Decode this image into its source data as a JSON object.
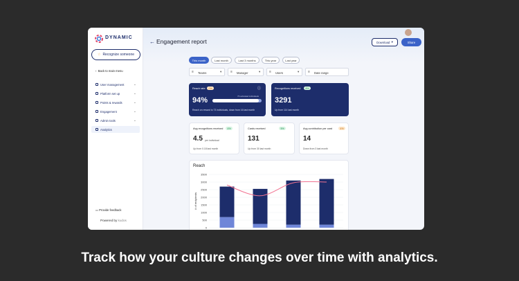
{
  "sidebar": {
    "logo": "DYNAMIC",
    "cta": "Recognize someone",
    "back": "Back to main menu",
    "menu": [
      "User management",
      "Platform set up",
      "Points & rewards",
      "Engagement",
      "Admin tools",
      "Analytics"
    ],
    "feedback": "Provide feedback",
    "powered_by": "Powered by",
    "brand": "kudos"
  },
  "header": {
    "title": "Engagement report",
    "download": "Download",
    "share": "Share"
  },
  "tabs": [
    "This month",
    "Last month",
    "Last 3 months",
    "This year",
    "Last year"
  ],
  "filters": [
    "Teams",
    "Manager",
    "Users",
    "Date range"
  ],
  "cards": [
    {
      "label": "Reach rate",
      "badge": "0%",
      "value": "94%",
      "extra": "73 activated individuals",
      "note": "Reach on reward to 73 individuals, down from 16 last month"
    },
    {
      "label": "Recognitions received",
      "badge": "8%",
      "value": "3291",
      "note": "Up from 114 last month"
    },
    {
      "label": "Avg recognitions received",
      "badge": "4%",
      "value": "4.5",
      "extra": "per individual",
      "note": "Up from 0.18 last month"
    },
    {
      "label": "Cards received",
      "badge": "5%",
      "value": "131",
      "note": "Up from 30 last month"
    },
    {
      "label": "Avg contribution per card",
      "badge": "4%",
      "value": "14",
      "note": "Down from 3 last month"
    }
  ],
  "chart_data": {
    "type": "bar",
    "stacked": true,
    "title": "Reach",
    "y_label": "# of recipients",
    "categories": [
      null,
      null,
      null,
      null
    ],
    "series": [
      {
        "color": "#6f86d8",
        "values": [
          700,
          250,
          200,
          200
        ]
      },
      {
        "color": "#1d2d6b",
        "values": [
          2000,
          2300,
          2900,
          3000
        ]
      },
      {
        "type": "line",
        "color": "#f27391",
        "values": [
          2800,
          2100,
          2950,
          3000
        ]
      }
    ],
    "ylim": [
      0,
      3500
    ],
    "yticks": [
      0,
      500,
      1000,
      1500,
      2000,
      2500,
      3000,
      3500
    ],
    "grid": true
  },
  "caption": "Track how your culture changes over time with analytics."
}
